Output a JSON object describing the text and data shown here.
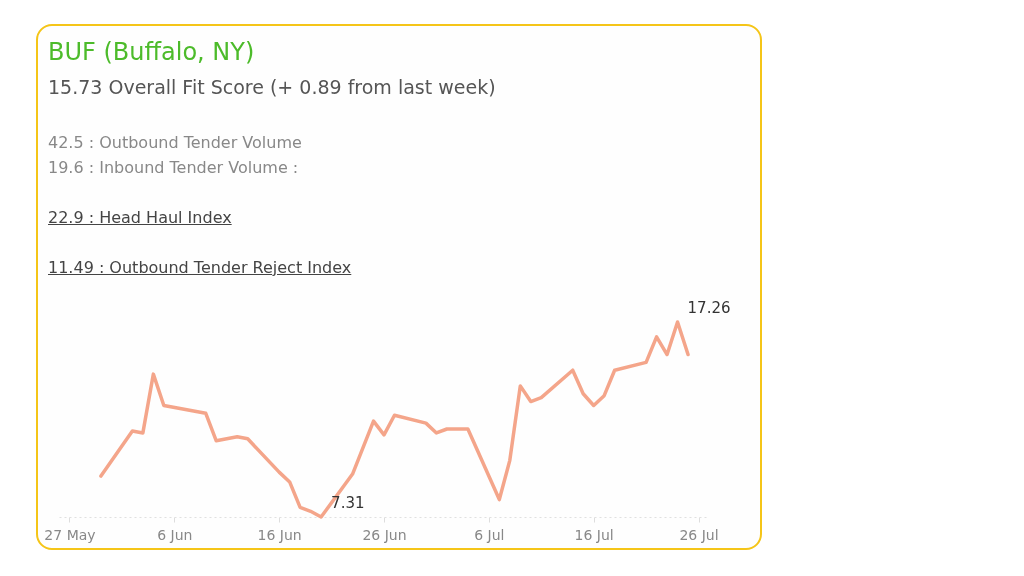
{
  "chart_data": {
    "type": "line",
    "title": "BUF (Buffalo, NY)",
    "subtitle": "15.73 Overall Fit Score (+ 0.89 from last week)",
    "annotations": [
      "42.5 : Outbound Tender Volume",
      "19.6 : Inbound Tender Volume :",
      "22.9 : Head Haul Index",
      "11.49 : Outbound Tender Reject Index"
    ],
    "x": [
      "--05-30",
      "--06-02",
      "--06-03",
      "--06-04",
      "--06-05",
      "--06-09",
      "--06-10",
      "--06-12",
      "--06-13",
      "--06-16",
      "--06-17",
      "--06-18",
      "--06-19",
      "--06-20",
      "--06-23",
      "--06-25",
      "--06-26",
      "--06-27",
      "--06-30",
      "--07-01",
      "--07-02",
      "--07-04",
      "--07-07",
      "--07-08",
      "--07-09",
      "--07-10",
      "--07-11",
      "--07-14",
      "--07-15",
      "--07-16",
      "--07-17",
      "--07-18",
      "--07-21",
      "--07-22",
      "--07-23",
      "--07-24",
      "--07-25"
    ],
    "series": [
      {
        "color": "#f4a58a",
        "values": [
          9.4,
          11.7,
          11.6,
          14.6,
          13.0,
          12.6,
          11.2,
          11.4,
          11.3,
          9.6,
          9.1,
          7.8,
          7.6,
          7.31,
          9.5,
          12.2,
          11.5,
          12.5,
          12.1,
          11.6,
          11.8,
          11.8,
          8.2,
          10.2,
          14.0,
          13.2,
          13.4,
          14.8,
          13.6,
          13.0,
          13.5,
          14.8,
          15.2,
          16.5,
          15.6,
          17.26,
          15.6
        ],
        "value_labels": [
          null,
          null,
          null,
          null,
          null,
          null,
          null,
          null,
          null,
          null,
          null,
          null,
          null,
          "7.31",
          null,
          null,
          null,
          null,
          null,
          null,
          null,
          null,
          null,
          null,
          null,
          null,
          null,
          null,
          null,
          null,
          null,
          null,
          null,
          null,
          null,
          "17.26",
          null
        ]
      }
    ],
    "xlim": [
      "--05-26",
      "--07-27"
    ],
    "xticks": [
      {
        "value": "--05-27",
        "label": "27 May"
      },
      {
        "value": "--06-06",
        "label": "6 Jun"
      },
      {
        "value": "--06-16",
        "label": "16 Jun"
      },
      {
        "value": "--06-26",
        "label": "26 Jun"
      },
      {
        "value": "--07-06",
        "label": "6 Jul"
      },
      {
        "value": "--07-16",
        "label": "16 Jul"
      },
      {
        "value": "--07-26",
        "label": "26 Jul"
      }
    ],
    "tick_labels": "x",
    "grid": false,
    "legend": false
  }
}
